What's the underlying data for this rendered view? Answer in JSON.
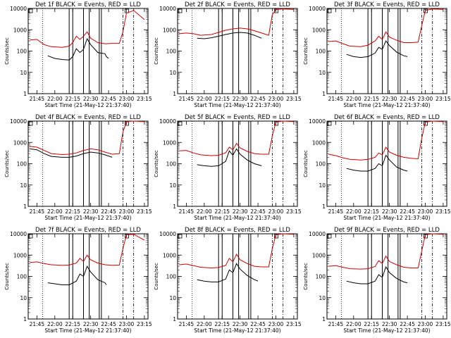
{
  "chart_data": [
    {
      "type": "line",
      "title": "Det 1f BLACK = Events, RED = LLD",
      "xlabel": "Start Time (21-May-12 21:37:40)",
      "ylabel": "Counts/sec",
      "x_ticks": [
        "21:45",
        "22:00",
        "22:15",
        "22:30",
        "22:45",
        "23:00",
        "23:15"
      ],
      "y_ticks": [
        "1",
        "10",
        "100",
        "1000",
        "10000"
      ],
      "ylim": [
        1,
        10000
      ],
      "scale": "log",
      "series": [
        {
          "color": "#000000",
          "x": [
            21.9,
            22.0,
            22.1,
            22.2,
            22.25,
            22.3,
            22.35,
            22.4,
            22.45,
            22.5,
            22.6,
            22.7,
            22.72,
            22.75
          ],
          "values": [
            60,
            45,
            40,
            38,
            55,
            130,
            85,
            120,
            380,
            200,
            85,
            75,
            55,
            45
          ]
        },
        {
          "color": "#d00000",
          "x": [
            21.65,
            21.75,
            21.85,
            21.95,
            22.1,
            22.2,
            22.25,
            22.3,
            22.35,
            22.4,
            22.45,
            22.5,
            22.6,
            22.7,
            22.8,
            22.9,
            22.95,
            23.0,
            23.1,
            23.25
          ],
          "values": [
            330,
            350,
            200,
            160,
            150,
            170,
            250,
            500,
            350,
            500,
            800,
            400,
            250,
            220,
            230,
            230,
            800,
            6000,
            8000,
            3000
          ]
        }
      ]
    },
    {
      "type": "line",
      "title": "Det 2f BLACK = Events, RED = LLD",
      "xlabel": "Start Time (21-May-12 21:37:40)",
      "ylabel": "Counts/sec",
      "x_ticks": [
        "21:45",
        "22:00",
        "22:15",
        "22:30",
        "22:45",
        "23:00",
        "23:15"
      ],
      "y_ticks": [
        "1",
        "10",
        "100",
        "1000",
        "10000"
      ],
      "ylim": [
        1,
        10000
      ],
      "scale": "log",
      "series": [
        {
          "color": "#000000",
          "x": [
            21.9,
            22.0,
            22.1,
            22.2,
            22.3,
            22.4,
            22.5,
            22.6,
            22.7,
            22.8
          ],
          "values": [
            400,
            380,
            420,
            500,
            600,
            700,
            750,
            700,
            550,
            400
          ]
        },
        {
          "color": "#d00000",
          "x": [
            21.65,
            21.75,
            21.85,
            21.95,
            22.1,
            22.2,
            22.3,
            22.4,
            22.5,
            22.6,
            22.7,
            22.8,
            22.9,
            22.95,
            23.0,
            23.1,
            23.25
          ],
          "values": [
            650,
            700,
            650,
            550,
            600,
            750,
            950,
            1100,
            1200,
            1100,
            900,
            700,
            550,
            5000,
            9000,
            9500,
            9000
          ]
        }
      ]
    },
    {
      "type": "line",
      "title": "Det 3f BLACK = Events, RED = LLD",
      "xlabel": "Start Time (21-May-12 21:37:40)",
      "ylabel": "Counts/sec",
      "x_ticks": [
        "21:45",
        "22:00",
        "22:15",
        "22:30",
        "22:45",
        "23:00",
        "23:15"
      ],
      "y_ticks": [
        "1",
        "10",
        "100",
        "1000",
        "10000"
      ],
      "ylim": [
        1,
        10000
      ],
      "scale": "log",
      "series": [
        {
          "color": "#000000",
          "x": [
            21.9,
            22.0,
            22.1,
            22.2,
            22.3,
            22.35,
            22.4,
            22.45,
            22.5,
            22.6,
            22.7,
            22.75
          ],
          "values": [
            70,
            55,
            50,
            55,
            80,
            150,
            120,
            300,
            180,
            90,
            60,
            55
          ]
        },
        {
          "color": "#d00000",
          "x": [
            21.65,
            21.75,
            21.85,
            21.95,
            22.1,
            22.2,
            22.3,
            22.35,
            22.4,
            22.45,
            22.5,
            22.6,
            22.7,
            22.8,
            22.9,
            22.95,
            23.0,
            23.1,
            23.25
          ],
          "values": [
            280,
            300,
            220,
            170,
            160,
            190,
            300,
            500,
            350,
            800,
            450,
            320,
            250,
            250,
            260,
            1500,
            8000,
            9500,
            9000
          ]
        }
      ]
    },
    {
      "type": "line",
      "title": "Det 4f BLACK = Events, RED = LLD",
      "xlabel": "Start Time (21-May-12 21:37:40)",
      "ylabel": "Counts/sec",
      "x_ticks": [
        "21:45",
        "22:00",
        "22:15",
        "22:30",
        "22:45",
        "23:00",
        "23:15"
      ],
      "y_ticks": [
        "1",
        "10",
        "100",
        "1000",
        "10000"
      ],
      "ylim": [
        1,
        10000
      ],
      "scale": "log",
      "series": [
        {
          "color": "#000000",
          "x": [
            21.65,
            21.75,
            21.85,
            21.95,
            22.1,
            22.2,
            22.3,
            22.4,
            22.5,
            22.6,
            22.7,
            22.8
          ],
          "values": [
            500,
            450,
            300,
            220,
            200,
            200,
            230,
            300,
            350,
            320,
            260,
            200
          ]
        },
        {
          "color": "#d00000",
          "x": [
            21.65,
            21.75,
            21.85,
            21.95,
            22.1,
            22.2,
            22.3,
            22.4,
            22.5,
            22.6,
            22.7,
            22.8,
            22.9,
            22.95,
            23.0,
            23.1,
            23.25
          ],
          "values": [
            650,
            600,
            420,
            300,
            270,
            280,
            320,
            420,
            500,
            450,
            350,
            280,
            300,
            3000,
            9500,
            10000,
            9500
          ]
        }
      ]
    },
    {
      "type": "line",
      "title": "Det 5f BLACK = Events, RED = LLD",
      "xlabel": "Start Time (21-May-12 21:37:40)",
      "ylabel": "Counts/sec",
      "x_ticks": [
        "21:45",
        "22:00",
        "22:15",
        "22:30",
        "22:45",
        "23:00",
        "23:15"
      ],
      "y_ticks": [
        "1",
        "10",
        "100",
        "1000",
        "10000"
      ],
      "ylim": [
        1,
        10000
      ],
      "scale": "log",
      "series": [
        {
          "color": "#000000",
          "x": [
            21.9,
            22.0,
            22.1,
            22.2,
            22.3,
            22.35,
            22.4,
            22.45,
            22.5,
            22.6,
            22.7,
            22.8
          ],
          "values": [
            90,
            80,
            75,
            80,
            130,
            400,
            250,
            500,
            280,
            150,
            100,
            80
          ]
        },
        {
          "color": "#d00000",
          "x": [
            21.65,
            21.75,
            21.85,
            21.95,
            22.1,
            22.2,
            22.3,
            22.35,
            22.4,
            22.45,
            22.5,
            22.6,
            22.7,
            22.8,
            22.9,
            22.95,
            23.0,
            23.1,
            23.25
          ],
          "values": [
            400,
            420,
            320,
            260,
            240,
            250,
            330,
            600,
            450,
            900,
            550,
            380,
            300,
            280,
            280,
            2000,
            9000,
            10000,
            9500
          ]
        }
      ]
    },
    {
      "type": "line",
      "title": "Det 6f BLACK = Events, RED = LLD",
      "xlabel": "Start Time (21-May-12 21:37:40)",
      "ylabel": "Counts/sec",
      "x_ticks": [
        "21:45",
        "22:00",
        "22:15",
        "22:30",
        "22:45",
        "23:00",
        "23:15"
      ],
      "y_ticks": [
        "1",
        "10",
        "100",
        "1000",
        "10000"
      ],
      "ylim": [
        1,
        10000
      ],
      "scale": "log",
      "series": [
        {
          "color": "#000000",
          "x": [
            21.9,
            22.0,
            22.1,
            22.2,
            22.3,
            22.35,
            22.4,
            22.45,
            22.5,
            22.6,
            22.7,
            22.75
          ],
          "values": [
            60,
            50,
            45,
            45,
            60,
            100,
            80,
            250,
            150,
            70,
            50,
            45
          ]
        },
        {
          "color": "#d00000",
          "x": [
            21.65,
            21.75,
            21.85,
            21.95,
            22.1,
            22.2,
            22.3,
            22.35,
            22.4,
            22.45,
            22.5,
            22.6,
            22.7,
            22.8,
            22.9,
            22.95,
            23.0,
            23.1,
            23.25
          ],
          "values": [
            280,
            240,
            190,
            160,
            150,
            160,
            200,
            320,
            260,
            600,
            350,
            250,
            200,
            180,
            170,
            1500,
            9000,
            10000,
            9500
          ]
        }
      ]
    },
    {
      "type": "line",
      "title": "Det 7f BLACK = Events, RED = LLD",
      "xlabel": "Start Time (21-May-12 21:37:40)",
      "ylabel": "Counts/sec",
      "x_ticks": [
        "21:45",
        "22:00",
        "22:15",
        "22:30",
        "22:45",
        "23:00",
        "23:15"
      ],
      "y_ticks": [
        "1",
        "10",
        "100",
        "1000",
        "10000"
      ],
      "ylim": [
        1,
        10000
      ],
      "scale": "log",
      "series": [
        {
          "color": "#000000",
          "x": [
            21.9,
            22.0,
            22.1,
            22.2,
            22.3,
            22.35,
            22.4,
            22.45,
            22.5,
            22.6,
            22.7,
            22.72
          ],
          "values": [
            50,
            45,
            40,
            40,
            60,
            130,
            100,
            300,
            160,
            70,
            50,
            40
          ]
        },
        {
          "color": "#d00000",
          "x": [
            21.65,
            21.75,
            21.85,
            21.95,
            22.1,
            22.2,
            22.3,
            22.35,
            22.4,
            22.45,
            22.5,
            22.6,
            22.7,
            22.8,
            22.9,
            22.95,
            23.0,
            23.1,
            23.25
          ],
          "values": [
            450,
            480,
            400,
            350,
            330,
            340,
            420,
            700,
            500,
            1000,
            600,
            420,
            350,
            330,
            340,
            2000,
            9000,
            9500,
            5000
          ]
        }
      ]
    },
    {
      "type": "line",
      "title": "Det 8f BLACK = Events, RED = LLD",
      "xlabel": "Start Time (21-May-12 21:37:40)",
      "ylabel": "Counts/sec",
      "x_ticks": [
        "21:45",
        "22:00",
        "22:15",
        "22:30",
        "22:45",
        "23:00",
        "23:15"
      ],
      "y_ticks": [
        "1",
        "10",
        "100",
        "1000",
        "10000"
      ],
      "ylim": [
        1,
        10000
      ],
      "scale": "log",
      "series": [
        {
          "color": "#000000",
          "x": [
            21.9,
            22.0,
            22.1,
            22.2,
            22.3,
            22.35,
            22.4,
            22.45,
            22.5,
            22.6,
            22.7,
            22.75
          ],
          "values": [
            70,
            60,
            55,
            55,
            75,
            200,
            150,
            400,
            220,
            110,
            70,
            60
          ]
        },
        {
          "color": "#d00000",
          "x": [
            21.65,
            21.75,
            21.85,
            21.95,
            22.1,
            22.2,
            22.3,
            22.35,
            22.4,
            22.45,
            22.5,
            22.6,
            22.7,
            22.8,
            22.9,
            22.95,
            23.0,
            23.1,
            23.25
          ],
          "values": [
            350,
            380,
            320,
            270,
            250,
            260,
            330,
            700,
            480,
            1100,
            600,
            400,
            300,
            280,
            280,
            2000,
            9000,
            10000,
            9500
          ]
        }
      ]
    },
    {
      "type": "line",
      "title": "Det 9f BLACK = Events, RED = LLD",
      "xlabel": "Start Time (21-May-12 21:37:40)",
      "ylabel": "Counts/sec",
      "x_ticks": [
        "21:45",
        "22:00",
        "22:15",
        "22:30",
        "22:45",
        "23:00",
        "23:15"
      ],
      "y_ticks": [
        "1",
        "10",
        "100",
        "1000",
        "10000"
      ],
      "ylim": [
        1,
        10000
      ],
      "scale": "log",
      "series": [
        {
          "color": "#000000",
          "x": [
            21.9,
            22.0,
            22.1,
            22.2,
            22.3,
            22.35,
            22.4,
            22.45,
            22.5,
            22.6,
            22.7,
            22.75
          ],
          "values": [
            60,
            50,
            45,
            45,
            60,
            120,
            90,
            280,
            150,
            80,
            55,
            50
          ]
        },
        {
          "color": "#d00000",
          "x": [
            21.65,
            21.75,
            21.85,
            21.95,
            22.1,
            22.2,
            22.3,
            22.35,
            22.4,
            22.45,
            22.5,
            22.6,
            22.7,
            22.8,
            22.9,
            22.95,
            23.0,
            23.1,
            23.25
          ],
          "values": [
            300,
            320,
            270,
            230,
            220,
            230,
            290,
            550,
            400,
            900,
            500,
            350,
            270,
            250,
            250,
            1500,
            9000,
            10000,
            9500
          ]
        }
      ]
    }
  ],
  "markers": {
    "dotted": [
      21.83
    ],
    "solid": [
      22.2,
      22.25,
      22.4,
      22.48,
      22.62,
      22.65
    ],
    "dash_dot": [
      22.95,
      23.1
    ]
  }
}
